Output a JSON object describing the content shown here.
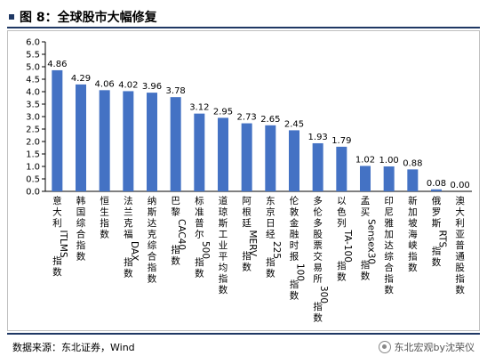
{
  "title": "图 8：全球股市大幅修复",
  "source": "数据来源：东北证券，Wind",
  "watermark": "东北宏观by沈荣仪",
  "colors": {
    "bar": "#4472c4",
    "rule": "#1f3864",
    "axis": "#000000"
  },
  "chart_data": {
    "type": "bar",
    "categories": [
      "意大利ITLMS指数",
      "韩国综合指数",
      "恒生指数",
      "法兰克福DAX指数",
      "纳斯达克综合指数",
      "巴黎CAC40指数",
      "标准普尔500指数",
      "道琼斯工业平均指数",
      "阿根廷MERV指数",
      "东京日经225指数",
      "伦敦金融时报100指数",
      "多伦多股票交易所300指数",
      "以色列TA-100指数",
      "孟买Sensex30指数",
      "印尼雅加达综合指数",
      "新加坡海峡指数",
      "俄罗斯RTS指数",
      "澳大利亚普通股指数"
    ],
    "values": [
      4.86,
      4.29,
      4.06,
      4.02,
      3.96,
      3.78,
      3.12,
      2.95,
      2.73,
      2.65,
      2.45,
      1.93,
      1.79,
      1.02,
      1.0,
      0.88,
      0.08,
      0.0
    ],
    "value_labels": [
      "4.86",
      "4.29",
      "4.06",
      "4.02",
      "3.96",
      "3.78",
      "3.12",
      "2.95",
      "2.73",
      "2.65",
      "2.45",
      "1.93",
      "1.79",
      "1.02",
      "1.00",
      "0.88",
      "0.08",
      "0.00"
    ],
    "yticks": [
      "0.0",
      "0.5",
      "1.0",
      "1.5",
      "2.0",
      "2.5",
      "3.0",
      "3.5",
      "4.0",
      "4.5",
      "5.0",
      "5.5",
      "6.0"
    ],
    "ylim": [
      0,
      6
    ],
    "grid": false,
    "legend": "none"
  }
}
